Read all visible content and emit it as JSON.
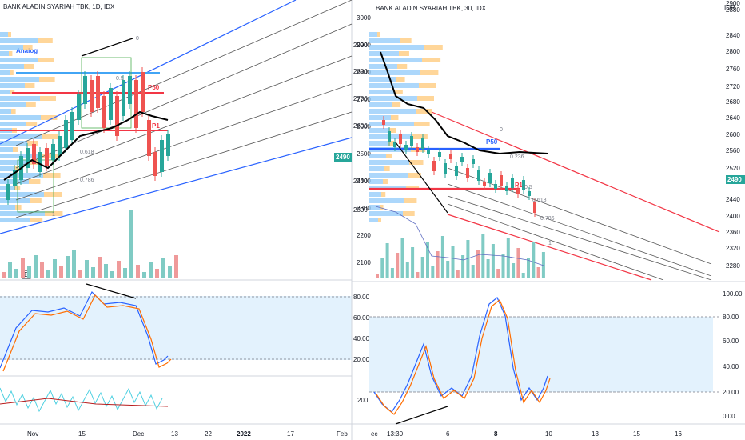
{
  "colors": {
    "up": "#26a69a",
    "down": "#ef5350",
    "vol_up": "#80cbc4",
    "vol_down": "#ef9a9a",
    "vwap": "#000000",
    "channel_blue": "#2962ff",
    "channel_red": "#f23645",
    "pitchfork": "#555555",
    "stoch_k": "#2962ff",
    "stoch_d": "#ff6d00",
    "stoch_band": "#e3f2fd",
    "price_badge": "#26a69a",
    "fork_p50": "#f23645",
    "p50_blue": "#2962ff",
    "p1": "#f23645",
    "analog": "#2962ff",
    "osc_a": "#4dd0e1",
    "osc_b": "#b71c1c",
    "vp_blue": "#90caf9",
    "vp_orange": "#ffcc80"
  },
  "panels": [
    {
      "name": "left",
      "title": "BANK ALADIN SYARIAH TBK, 1D, IDX",
      "price_axis": {
        "ticks": [
          "2900",
          "2800",
          "2700",
          "2600",
          "2490",
          "2400",
          "2300"
        ],
        "min": 2200,
        "max": 2950,
        "current": "2490"
      },
      "time_axis": {
        "ticks": [
          "Nov",
          "15",
          "Dec",
          "13",
          "22",
          "2022",
          "17",
          "Feb"
        ]
      },
      "stoch_axis": {
        "ticks": [
          "80.00",
          "60.00",
          "40.00",
          "20.00"
        ]
      },
      "labels": {
        "analog": "Analog",
        "p50": "P50",
        "p1": "P1",
        "events_badge": "E"
      },
      "fib_levels": [
        "0.618",
        "0.786",
        "1",
        "0.5",
        "0"
      ],
      "volume_profile_left": [
        "2880",
        "2860",
        "2840",
        "2820",
        "2800",
        "2780",
        "2760",
        "2740",
        "2720",
        "2700",
        "2680",
        "2660",
        "2640",
        "2620",
        "2600",
        "2580",
        "2560",
        "2540",
        "2520",
        "2500",
        "2480",
        "2460",
        "2440",
        "2420",
        "2400",
        "2380",
        "2360",
        "2340",
        "2320",
        "2300"
      ]
    },
    {
      "name": "right",
      "title": "BANK ALADIN SYARIAH TBK, 30, IDX",
      "currency": "IDR",
      "price_axis": {
        "ticks": [
          "2900",
          "2880",
          "2840",
          "2800",
          "2760",
          "2720",
          "2680",
          "2640",
          "2600",
          "2560",
          "2520",
          "2490",
          "2440",
          "2400",
          "2360",
          "2320",
          "2280"
        ],
        "current": "2490"
      },
      "left_axis": {
        "ticks": [
          "3000",
          "2900",
          "2800",
          "2700",
          "2600",
          "2500",
          "2400",
          "2300",
          "2200",
          "2100"
        ]
      },
      "time_axis": {
        "ticks": [
          "ec",
          "13:30",
          "6",
          "8",
          "10",
          "13",
          "15",
          "16"
        ]
      },
      "stoch_axis": {
        "ticks": [
          "100.00",
          "80.00",
          "60.00",
          "40.00",
          "20.00",
          "0.00"
        ]
      },
      "stoch_left_tick": "200",
      "labels": {
        "p50": "P50",
        "p1": "P1"
      },
      "fib_levels": [
        "0",
        "0.236",
        "0.5",
        "0.618",
        "0.786",
        "1"
      ]
    }
  ]
}
